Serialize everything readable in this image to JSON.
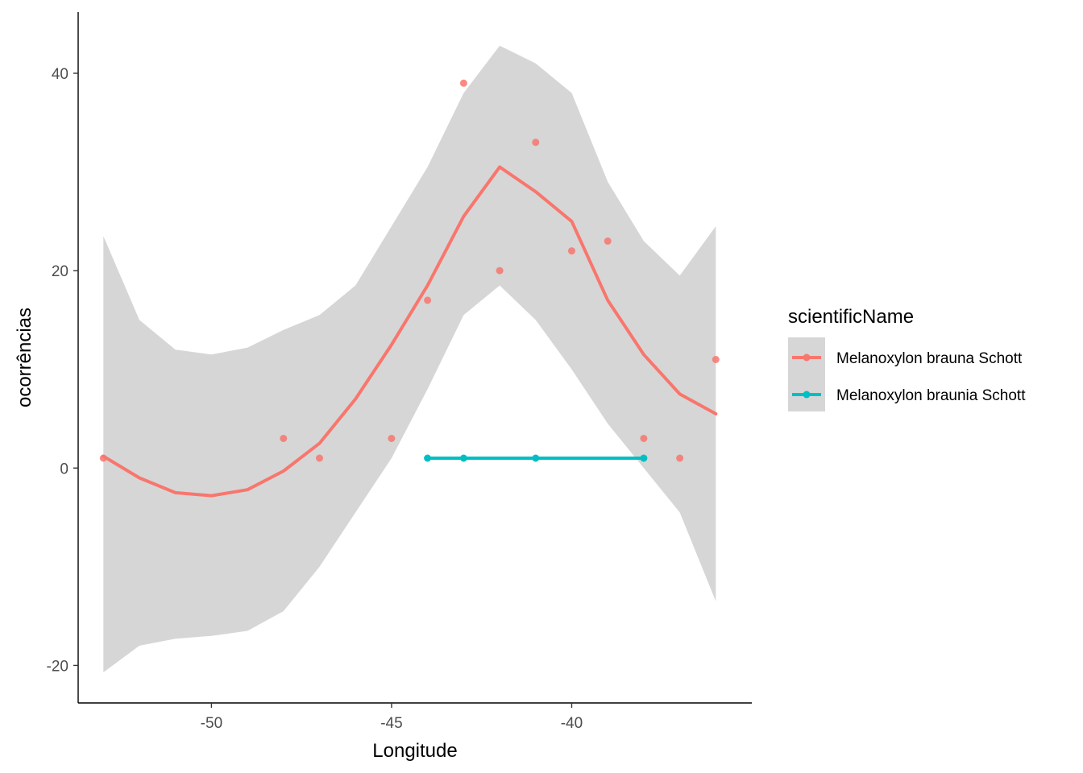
{
  "chart_data": {
    "type": "scatter",
    "xlabel": "Longitude",
    "ylabel": "ocorrências",
    "xlim": [
      -53.7,
      -35
    ],
    "ylim": [
      -23.8,
      46.2
    ],
    "x_ticks": [
      -50,
      -45,
      -40
    ],
    "x_tick_labels": [
      "-50",
      "-45",
      "-40"
    ],
    "y_ticks": [
      -20,
      0,
      20,
      40
    ],
    "y_tick_labels": [
      "-20",
      "0",
      "20",
      "40"
    ],
    "grid": false,
    "legend": {
      "title": "scientificName",
      "position": "right"
    },
    "series": [
      {
        "name": "Melanoxylon brauna Schott",
        "color": "#F8766D",
        "points": [
          {
            "x": -53,
            "y": 1
          },
          {
            "x": -48,
            "y": 3
          },
          {
            "x": -47,
            "y": 1
          },
          {
            "x": -45,
            "y": 3
          },
          {
            "x": -44,
            "y": 17
          },
          {
            "x": -43,
            "y": 39
          },
          {
            "x": -42,
            "y": 20
          },
          {
            "x": -41,
            "y": 33
          },
          {
            "x": -40,
            "y": 22
          },
          {
            "x": -39,
            "y": 23
          },
          {
            "x": -38,
            "y": 3
          },
          {
            "x": -37,
            "y": 1
          },
          {
            "x": -36,
            "y": 11
          }
        ],
        "smooth": {
          "x": [
            -53,
            -52,
            -51,
            -50,
            -49,
            -48,
            -47,
            -46,
            -45,
            -44,
            -43,
            -42,
            -41,
            -40,
            -39,
            -38,
            -37,
            -36
          ],
          "y": [
            1.2,
            -1,
            -2.5,
            -2.8,
            -2.2,
            -0.3,
            2.5,
            7,
            12.5,
            18.5,
            25.5,
            30.5,
            28,
            25,
            17,
            11.5,
            7.5,
            5.5
          ],
          "ymin": [
            -20.7,
            -18,
            -17.3,
            -17,
            -16.5,
            -14.5,
            -10,
            -4.5,
            1,
            8,
            15.5,
            18.5,
            15,
            10,
            4.5,
            0,
            -4.5,
            -13.5
          ],
          "ymax": [
            23.5,
            15,
            12,
            11.5,
            12.2,
            14,
            15.5,
            18.5,
            24.5,
            30.5,
            38,
            42.8,
            41,
            38,
            29,
            23,
            19.5,
            24.5
          ]
        }
      },
      {
        "name": "Melanoxylon braunia Schott",
        "color": "#00BFC4",
        "points": [
          {
            "x": -44,
            "y": 1
          },
          {
            "x": -43,
            "y": 1
          },
          {
            "x": -41,
            "y": 1
          },
          {
            "x": -38,
            "y": 1
          }
        ]
      }
    ]
  }
}
